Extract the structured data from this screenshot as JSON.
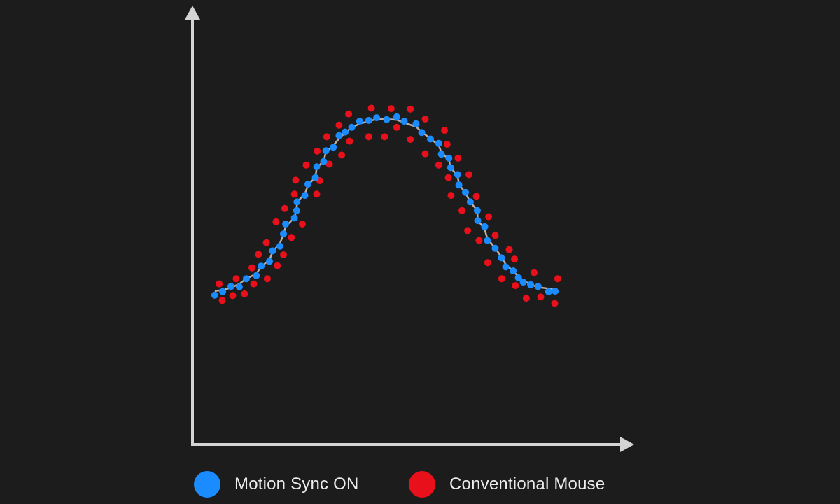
{
  "chart_data": {
    "type": "scatter",
    "title": "",
    "xlabel": "",
    "ylabel": "",
    "xlim": [
      0,
      100
    ],
    "ylim": [
      0,
      100
    ],
    "grid": false,
    "legend_placement": "bottom",
    "series": [
      {
        "name": "Motion Sync ON",
        "color": "#1a8cff",
        "with_line": true,
        "line_color": "#b8b0a8",
        "points": [
          [
            5.1,
            34.4
          ],
          [
            6.9,
            35.2
          ],
          [
            8.8,
            36.4
          ],
          [
            10.7,
            36.3
          ],
          [
            12.3,
            38.2
          ],
          [
            14.6,
            38.9
          ],
          [
            15.7,
            41.1
          ],
          [
            17.6,
            42.2
          ],
          [
            18.3,
            44.6
          ],
          [
            20.0,
            45.7
          ],
          [
            20.8,
            48.5
          ],
          [
            21.3,
            50.8
          ],
          [
            23.3,
            52.2
          ],
          [
            23.8,
            53.9
          ],
          [
            23.9,
            55.9
          ],
          [
            25.7,
            57.4
          ],
          [
            26.4,
            60.0
          ],
          [
            28.1,
            61.5
          ],
          [
            28.4,
            64.0
          ],
          [
            30.0,
            65.2
          ],
          [
            30.5,
            67.7
          ],
          [
            32.2,
            68.5
          ],
          [
            33.5,
            71.2
          ],
          [
            34.9,
            72.0
          ],
          [
            36.4,
            73.1
          ],
          [
            38.2,
            74.5
          ],
          [
            40.3,
            74.7
          ],
          [
            42.1,
            75.3
          ],
          [
            44.4,
            74.9
          ],
          [
            46.7,
            75.5
          ],
          [
            48.4,
            74.5
          ],
          [
            51.1,
            73.9
          ],
          [
            52.4,
            71.9
          ],
          [
            54.4,
            70.4
          ],
          [
            56.3,
            69.4
          ],
          [
            56.9,
            66.9
          ],
          [
            58.6,
            66.0
          ],
          [
            59.0,
            63.8
          ],
          [
            60.6,
            62.2
          ],
          [
            60.9,
            59.8
          ],
          [
            62.4,
            58.1
          ],
          [
            63.5,
            55.9
          ],
          [
            65.1,
            53.9
          ],
          [
            65.2,
            51.6
          ],
          [
            66.8,
            50.2
          ],
          [
            67.4,
            47.0
          ],
          [
            69.2,
            45.2
          ],
          [
            70.6,
            43.0
          ],
          [
            71.6,
            40.9
          ],
          [
            73.3,
            40.0
          ],
          [
            74.5,
            38.4
          ],
          [
            75.6,
            37.4
          ],
          [
            77.3,
            36.8
          ],
          [
            79.0,
            36.4
          ],
          [
            81.4,
            35.2
          ],
          [
            82.9,
            35.3
          ]
        ]
      },
      {
        "name": "Conventional Mouse",
        "color": "#e8101a",
        "with_line": false,
        "points": [
          [
            6.1,
            37.0
          ],
          [
            6.8,
            33.2
          ],
          [
            9.2,
            34.3
          ],
          [
            10.0,
            38.2
          ],
          [
            11.9,
            34.7
          ],
          [
            13.6,
            40.7
          ],
          [
            14.0,
            37.0
          ],
          [
            15.1,
            43.8
          ],
          [
            16.9,
            46.5
          ],
          [
            17.1,
            38.2
          ],
          [
            19.1,
            51.3
          ],
          [
            19.4,
            41.2
          ],
          [
            20.8,
            43.7
          ],
          [
            21.1,
            54.4
          ],
          [
            22.6,
            47.7
          ],
          [
            23.3,
            57.7
          ],
          [
            23.6,
            60.9
          ],
          [
            25.1,
            50.8
          ],
          [
            26.0,
            64.4
          ],
          [
            28.4,
            57.7
          ],
          [
            28.5,
            67.6
          ],
          [
            29.1,
            60.8
          ],
          [
            30.7,
            70.9
          ],
          [
            31.3,
            64.6
          ],
          [
            33.5,
            73.6
          ],
          [
            34.1,
            66.7
          ],
          [
            35.7,
            76.2
          ],
          [
            35.9,
            69.9
          ],
          [
            40.3,
            70.9
          ],
          [
            40.9,
            77.5
          ],
          [
            43.9,
            70.9
          ],
          [
            45.4,
            77.4
          ],
          [
            46.7,
            73.1
          ],
          [
            49.8,
            70.3
          ],
          [
            49.8,
            77.3
          ],
          [
            53.2,
            75.0
          ],
          [
            53.2,
            67.0
          ],
          [
            56.3,
            64.4
          ],
          [
            57.6,
            72.4
          ],
          [
            58.2,
            69.2
          ],
          [
            58.5,
            61.5
          ],
          [
            59.1,
            57.4
          ],
          [
            60.7,
            66.0
          ],
          [
            61.6,
            53.9
          ],
          [
            62.9,
            49.3
          ],
          [
            63.2,
            62.2
          ],
          [
            64.9,
            57.2
          ],
          [
            65.5,
            47.0
          ],
          [
            67.5,
            41.9
          ],
          [
            67.7,
            52.5
          ],
          [
            69.2,
            48.2
          ],
          [
            70.7,
            38.2
          ],
          [
            72.4,
            44.9
          ],
          [
            73.6,
            42.7
          ],
          [
            73.8,
            36.6
          ],
          [
            76.3,
            33.7
          ],
          [
            78.1,
            39.6
          ],
          [
            79.6,
            34.0
          ],
          [
            82.8,
            32.5
          ],
          [
            83.5,
            38.2
          ]
        ]
      }
    ]
  },
  "legend": {
    "items": [
      {
        "label": "Motion Sync ON",
        "color": "#1a8cff"
      },
      {
        "label": "Conventional Mouse",
        "color": "#e8101a"
      }
    ]
  }
}
